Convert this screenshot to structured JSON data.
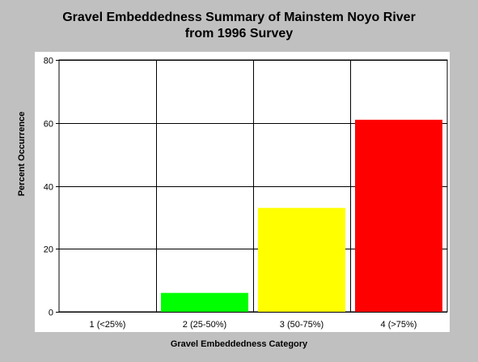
{
  "chart_data": {
    "type": "bar",
    "title": [
      "Gravel Embeddedness Summary of Mainstem Noyo River",
      "from 1996 Survey"
    ],
    "xlabel": "Gravel Embeddedness Category",
    "ylabel": "Percent Occurrence",
    "categories": [
      "1 (<25%)",
      "2 (25-50%)",
      "3 (50-75%)",
      "4 (>75%)"
    ],
    "values": [
      0,
      6,
      33,
      61
    ],
    "bar_colors": [
      "#00ff00",
      "#00ff00",
      "#ffff00",
      "#ff0000"
    ],
    "ylim": [
      0,
      80
    ],
    "yticks": [
      0,
      20,
      40,
      60,
      80
    ],
    "grid": true,
    "background": "#c0c0c0",
    "plot_background": "#ffffff"
  }
}
